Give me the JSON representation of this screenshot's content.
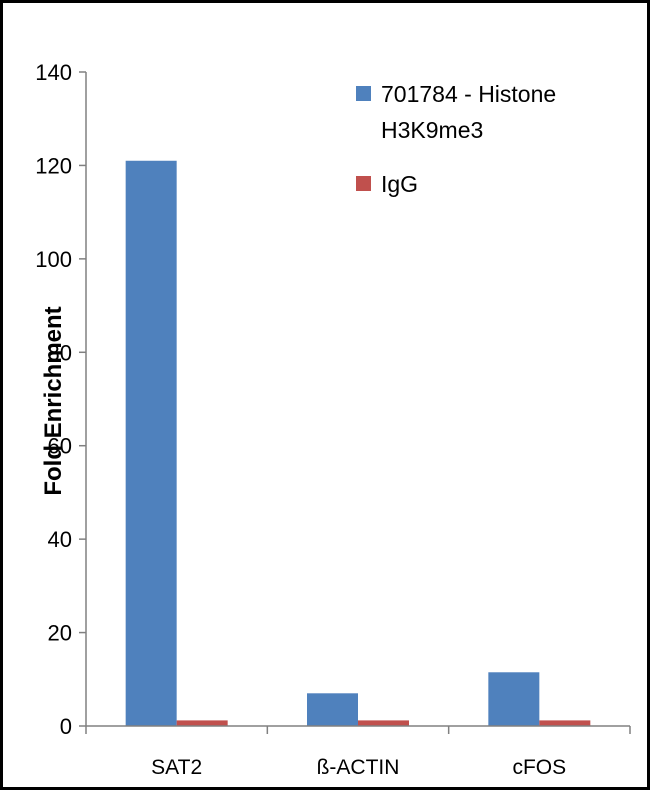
{
  "chart_data": {
    "type": "bar",
    "title": "",
    "xlabel": "",
    "ylabel": "Fold Enrichment",
    "categories": [
      "SAT2",
      "ß-ACTIN",
      "cFOS"
    ],
    "series": [
      {
        "name": "701784 - Histone H3K9me3",
        "name_lines": [
          "701784 - Histone",
          "H3K9me3"
        ],
        "color": "#4F81BD",
        "values": [
          121,
          7,
          11.5
        ]
      },
      {
        "name": "IgG",
        "name_lines": [
          "IgG"
        ],
        "color": "#C0504D",
        "values": [
          1.2,
          1.2,
          1.2
        ]
      }
    ],
    "ylim": [
      0,
      140
    ],
    "yticks": [
      0,
      20,
      40,
      60,
      80,
      100,
      120,
      140
    ],
    "grid": false,
    "legend_position": "top-right"
  }
}
